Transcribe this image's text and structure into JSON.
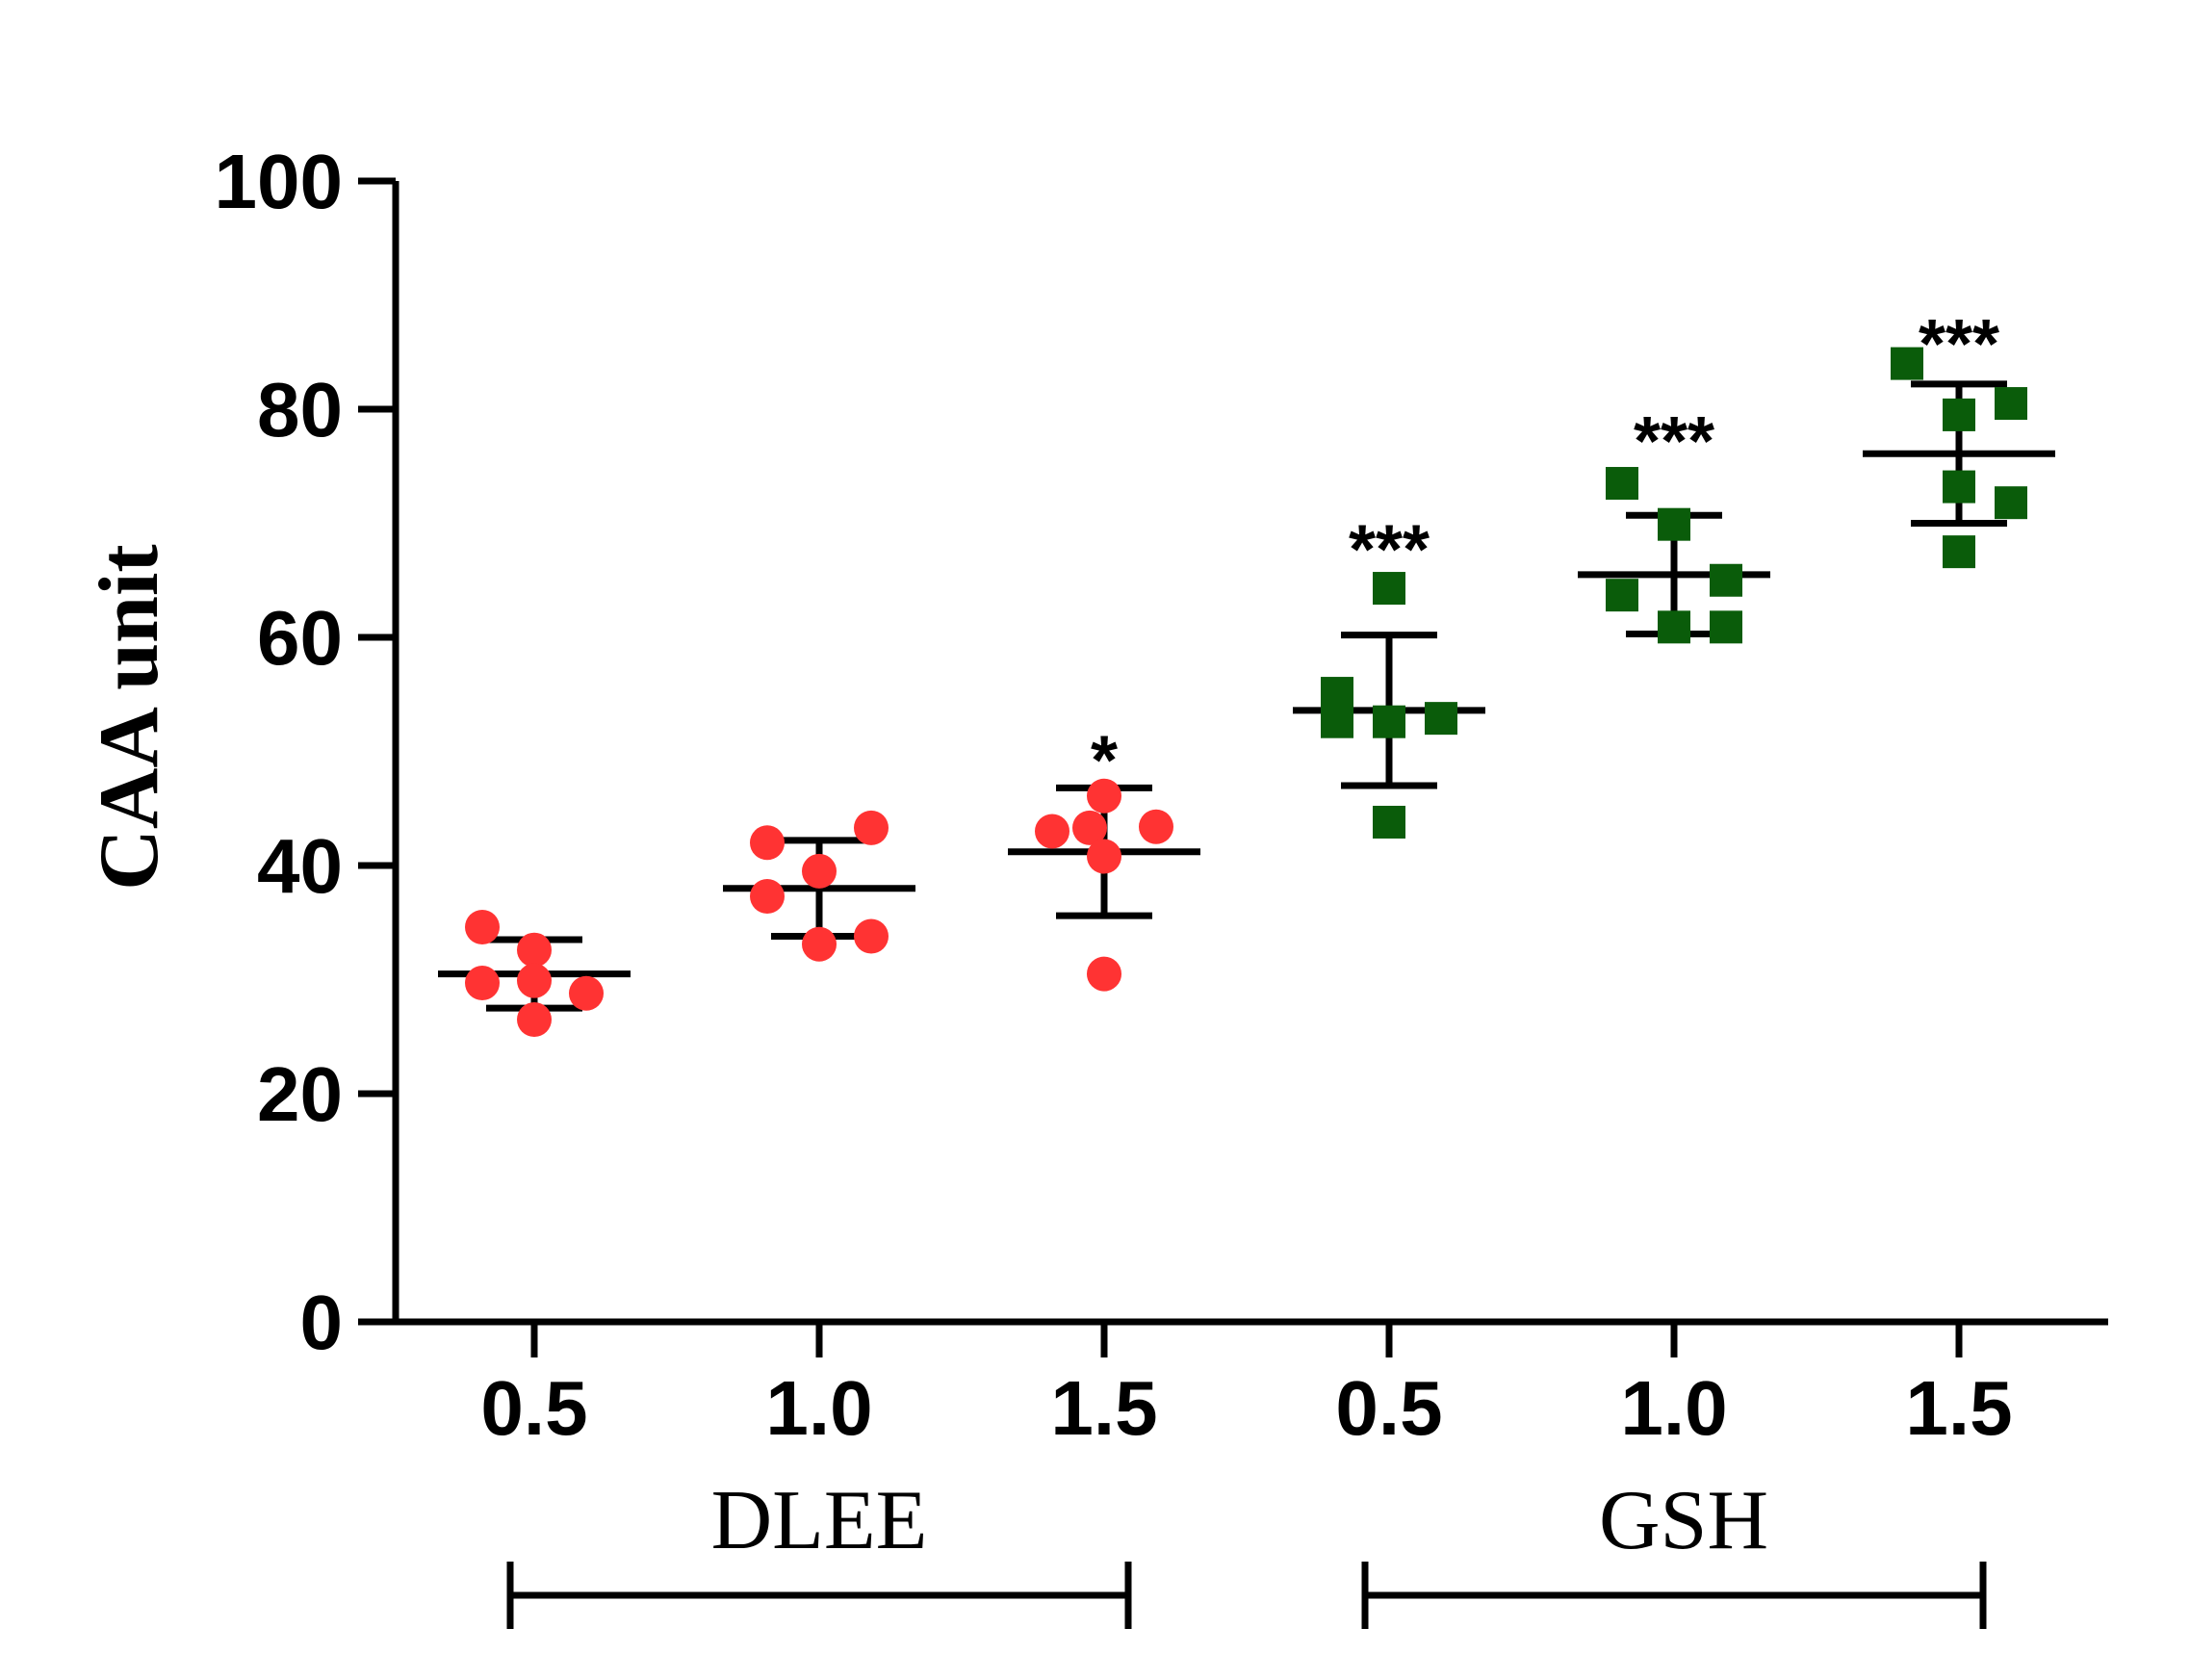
{
  "chart_data": {
    "type": "scatter",
    "title": "",
    "xlabel": "",
    "ylabel": "CAA unit",
    "ylim": [
      0,
      100
    ],
    "yticks": [
      0,
      20,
      40,
      60,
      80,
      100
    ],
    "ytick_labels": [
      "0",
      "20",
      "40",
      "60",
      "80",
      "100"
    ],
    "grid": false,
    "categories": [
      "0.5",
      "1.0",
      "1.5",
      "0.5",
      "1.0",
      "1.5"
    ],
    "groups": [
      {
        "label": "DLEE",
        "category_indices": [
          0,
          1,
          2
        ]
      },
      {
        "label": "GSH",
        "category_indices": [
          3,
          4,
          5
        ]
      }
    ],
    "series": [
      {
        "name": "DLEE",
        "marker": "circle",
        "color": "#ff3333",
        "points": [
          {
            "cat": 0,
            "offsets": [
              -0.18,
              0.0,
              -0.18,
              0.0,
              0.18,
              0.0
            ],
            "values": [
              34.6,
              32.6,
              29.7,
              29.9,
              28.8,
              26.5
            ]
          },
          {
            "cat": 1,
            "offsets": [
              -0.18,
              0.18,
              0.0,
              -0.18,
              0.0,
              0.18
            ],
            "values": [
              42.0,
              43.3,
              39.5,
              37.3,
              33.1,
              33.8
            ]
          },
          {
            "cat": 2,
            "offsets": [
              -0.18,
              0.0,
              0.18,
              -0.05,
              0.0,
              0.0
            ],
            "values": [
              43.0,
              46.1,
              43.4,
              43.3,
              40.8,
              30.5
            ]
          }
        ],
        "mean": [
          30.5,
          38.0,
          41.2
        ],
        "sd": [
          3.0,
          4.2,
          5.6
        ]
      },
      {
        "name": "GSH",
        "marker": "square",
        "color": "#0a5c0a",
        "points": [
          {
            "cat": 3,
            "offsets": [
              0.0,
              -0.18,
              0.18,
              0.0,
              -0.18,
              0.0
            ],
            "values": [
              64.3,
              55.1,
              52.9,
              52.6,
              52.6,
              43.8
            ]
          },
          {
            "cat": 4,
            "offsets": [
              -0.18,
              0.0,
              -0.18,
              0.18,
              0.0,
              0.18
            ],
            "values": [
              73.5,
              69.9,
              63.7,
              65.0,
              60.9,
              60.9
            ]
          },
          {
            "cat": 5,
            "offsets": [
              -0.18,
              0.18,
              0.0,
              0.0,
              0.18,
              0.0
            ],
            "values": [
              84.0,
              80.5,
              79.5,
              73.2,
              71.8,
              67.5
            ]
          }
        ],
        "mean": [
          53.6,
          65.5,
          76.1
        ],
        "sd": [
          6.6,
          5.2,
          6.1
        ]
      }
    ],
    "annotations": [
      {
        "cat": 2,
        "text": "*",
        "value": 50.5
      },
      {
        "cat": 3,
        "text": "***",
        "value": 69.0
      },
      {
        "cat": 4,
        "text": "***",
        "value": 78.5
      },
      {
        "cat": 5,
        "text": "***",
        "value": 87.0
      }
    ]
  }
}
